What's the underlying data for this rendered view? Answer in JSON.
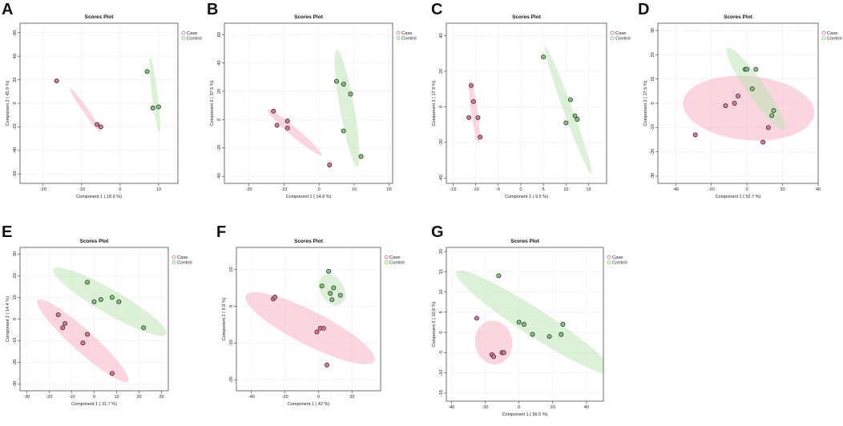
{
  "colors": {
    "case_fill": "#f7b3c4",
    "case_point": "#e0768f",
    "control_fill": "#bfe6b7",
    "control_point": "#7fc77c",
    "point_stroke": "#222222"
  },
  "chart_data": [
    {
      "id": "A",
      "type": "scatter",
      "label": "A",
      "title": "Scores Plot",
      "xlabel": "Component 1 ( 18.9 %)",
      "ylabel": "Component 2 ( 45.9 %)",
      "xlim": [
        -26,
        15
      ],
      "ylim": [
        -68,
        68
      ],
      "xticks": [
        -20,
        -10,
        0,
        10
      ],
      "yticks": [
        -60,
        -40,
        -20,
        0,
        20,
        40,
        60
      ],
      "legend": [
        "Case",
        "Control"
      ],
      "series": [
        {
          "name": "Case",
          "points": [
            [
              -16.5,
              19
            ],
            [
              -6,
              -18
            ],
            [
              -5,
              -20
            ]
          ],
          "ellipse": {
            "cx": -9,
            "cy": -6,
            "rx": 23,
            "ry": 2.2,
            "angle": -55
          }
        },
        {
          "name": "Control",
          "points": [
            [
              7,
              27
            ],
            [
              8.5,
              -4
            ],
            [
              10,
              -3
            ]
          ],
          "ellipse": {
            "cx": 9,
            "cy": 7,
            "rx": 32,
            "ry": 2.4,
            "angle": -83
          }
        }
      ]
    },
    {
      "id": "B",
      "type": "scatter",
      "label": "B",
      "title": "Scores Plot",
      "xlabel": "Component 1 ( 14.9 %)",
      "ylabel": "Component 2 ( 37.5 %)",
      "xlim": [
        -27,
        21
      ],
      "ylim": [
        -45,
        68
      ],
      "xticks": [
        -20,
        -10,
        0,
        10,
        20
      ],
      "yticks": [
        -40,
        -20,
        0,
        20,
        40,
        60
      ],
      "legend": [
        "Case",
        "Control"
      ],
      "series": [
        {
          "name": "Case",
          "points": [
            [
              -13,
              6
            ],
            [
              -12,
              -4
            ],
            [
              -9,
              -1
            ],
            [
              -9,
              -6
            ],
            [
              3,
              -32
            ]
          ],
          "ellipse": {
            "cx": -7,
            "cy": -9,
            "rx": 25,
            "ry": 3,
            "angle": -40
          }
        },
        {
          "name": "Control",
          "points": [
            [
              5,
              27
            ],
            [
              7,
              25
            ],
            [
              9,
              18
            ],
            [
              7,
              -8
            ],
            [
              12,
              -26
            ]
          ],
          "ellipse": {
            "cx": 8,
            "cy": 8,
            "rx": 42,
            "ry": 5,
            "angle": -80
          }
        }
      ]
    },
    {
      "id": "C",
      "type": "scatter",
      "label": "C",
      "title": "Scores Plot",
      "xlabel": "Component 1 ( 9.5 %)",
      "ylabel": "Component 2 ( 17.9 %)",
      "xlim": [
        -16.5,
        19
      ],
      "ylim": [
        -43,
        47
      ],
      "xticks": [
        -15,
        -10,
        -5,
        0,
        5,
        10,
        15
      ],
      "yticks": [
        -40,
        -20,
        0,
        20,
        40
      ],
      "legend": [
        "Case",
        "Control"
      ],
      "series": [
        {
          "name": "Case",
          "points": [
            [
              -11,
              12
            ],
            [
              -10.5,
              3
            ],
            [
              -9.5,
              -6
            ],
            [
              -11.5,
              -6
            ],
            [
              -9,
              -17
            ]
          ],
          "ellipse": {
            "cx": -10.3,
            "cy": -2.5,
            "rx": 18,
            "ry": 1.8,
            "angle": -82
          }
        },
        {
          "name": "Control",
          "points": [
            [
              5,
              28
            ],
            [
              11,
              4
            ],
            [
              12,
              -5
            ],
            [
              12.5,
              -7
            ],
            [
              10,
              -9
            ]
          ],
          "ellipse": {
            "cx": 10.5,
            "cy": -2,
            "rx": 38,
            "ry": 2.5,
            "angle": -70
          }
        }
      ]
    },
    {
      "id": "D",
      "type": "scatter",
      "label": "D",
      "title": "Scores Plot",
      "xlabel": "Component 1 ( 52.7 %)",
      "ylabel": "Component 2 ( 17.5 %)",
      "xlim": [
        -50,
        40
      ],
      "ylim": [
        -33,
        33
      ],
      "xticks": [
        -40,
        -20,
        0,
        20,
        40
      ],
      "yticks": [
        -30,
        -20,
        -10,
        0,
        10,
        20,
        30
      ],
      "legend": [
        "Case",
        "Control"
      ],
      "series": [
        {
          "name": "Case",
          "points": [
            [
              -29,
              -13
            ],
            [
              -12,
              -1
            ],
            [
              -7,
              0
            ],
            [
              -5,
              3
            ],
            [
              12,
              -10
            ],
            [
              9,
              -16
            ]
          ],
          "ellipse": {
            "cx": 1,
            "cy": -2,
            "rx": 37,
            "ry": 18,
            "angle": -5
          }
        },
        {
          "name": "Control",
          "points": [
            [
              -1,
              14
            ],
            [
              0,
              14
            ],
            [
              3,
              6
            ],
            [
              5,
              14
            ],
            [
              14,
              -5
            ],
            [
              15,
              -3
            ]
          ],
          "ellipse": {
            "cx": 5,
            "cy": 6,
            "rx": 28,
            "ry": 5,
            "angle": -55
          }
        }
      ]
    },
    {
      "id": "E",
      "type": "scatter",
      "label": "E",
      "title": "Scores Plot",
      "xlabel": "Component 1 ( 31.7 %)",
      "ylabel": "Component 2 ( 14.4 %)",
      "xlim": [
        -33,
        33
      ],
      "ylim": [
        -33,
        33
      ],
      "xticks": [
        -30,
        -20,
        -10,
        0,
        10,
        20,
        30
      ],
      "yticks": [
        -30,
        -20,
        -10,
        0,
        10,
        20,
        30
      ],
      "legend": [
        "Case",
        "Control"
      ],
      "series": [
        {
          "name": "Case",
          "points": [
            [
              -16,
              2
            ],
            [
              -14,
              -4
            ],
            [
              -13,
              -2
            ],
            [
              -5,
              -11
            ],
            [
              -3,
              -7
            ],
            [
              8,
              -25
            ]
          ],
          "ellipse": {
            "cx": -5,
            "cy": -10,
            "rx": 28,
            "ry": 5,
            "angle": -42
          }
        },
        {
          "name": "Control",
          "points": [
            [
              -3,
              17
            ],
            [
              0,
              8
            ],
            [
              3,
              9
            ],
            [
              8,
              10
            ],
            [
              11,
              8
            ],
            [
              22,
              -4
            ]
          ],
          "ellipse": {
            "cx": 7,
            "cy": 8,
            "rx": 30,
            "ry": 5.5,
            "angle": -30
          }
        }
      ]
    },
    {
      "id": "F",
      "type": "scatter",
      "label": "F",
      "title": "Scores Plot",
      "xlabel": "Component 1 ( 42 %)",
      "ylabel": "Component 2 ( 9.9 %)",
      "xlim": [
        -49,
        37
      ],
      "ylim": [
        -23,
        16
      ],
      "xticks": [
        -40,
        -20,
        0,
        20
      ],
      "yticks": [
        -20,
        -10,
        0,
        10
      ],
      "legend": [
        "Case",
        "Control"
      ],
      "series": [
        {
          "name": "Case",
          "points": [
            [
              -27,
              2
            ],
            [
              -26,
              2.5
            ],
            [
              -1,
              -7
            ],
            [
              1,
              -6
            ],
            [
              3,
              -6
            ],
            [
              5,
              -16
            ]
          ],
          "ellipse": {
            "cx": -5,
            "cy": -6,
            "rx": 43,
            "ry": 10,
            "angle": -27
          }
        },
        {
          "name": "Control",
          "points": [
            [
              2,
              5.5
            ],
            [
              6,
              9.5
            ],
            [
              7,
              3.5
            ],
            [
              8,
              1.8
            ],
            [
              9,
              5
            ],
            [
              13,
              3
            ]
          ],
          "ellipse": {
            "cx": 8,
            "cy": 4.5,
            "rx": 10,
            "ry": 7,
            "angle": -60
          }
        }
      ]
    },
    {
      "id": "G",
      "type": "scatter",
      "label": "G",
      "title": "Scores Plot",
      "xlabel": "Component 1 ( 56.5 %)",
      "ylabel": "Component 2 ( 10.8 %)",
      "xlim": [
        -43,
        50
      ],
      "ylim": [
        -17,
        21
      ],
      "xticks": [
        -40,
        -20,
        0,
        20,
        40
      ],
      "yticks": [
        -15,
        -10,
        -5,
        0,
        5,
        10,
        15,
        20
      ],
      "legend": [
        "Case",
        "Control"
      ],
      "series": [
        {
          "name": "Case",
          "points": [
            [
              -25,
              3.5
            ],
            [
              -16,
              -5.5
            ],
            [
              -15,
              -6
            ],
            [
              -10,
              -5
            ],
            [
              -9,
              -5
            ]
          ],
          "ellipse": {
            "cx": -15,
            "cy": -2.5,
            "rx": 13,
            "ry": 11,
            "angle": -80
          }
        },
        {
          "name": "Control",
          "points": [
            [
              -12,
              14
            ],
            [
              0,
              2.5
            ],
            [
              3,
              2
            ],
            [
              8,
              -0.5
            ],
            [
              18,
              -1
            ],
            [
              25,
              -0.5
            ],
            [
              26,
              2
            ]
          ],
          "ellipse": {
            "cx": 9,
            "cy": 2.5,
            "rx": 55,
            "ry": 8,
            "angle": -33
          }
        }
      ]
    }
  ]
}
